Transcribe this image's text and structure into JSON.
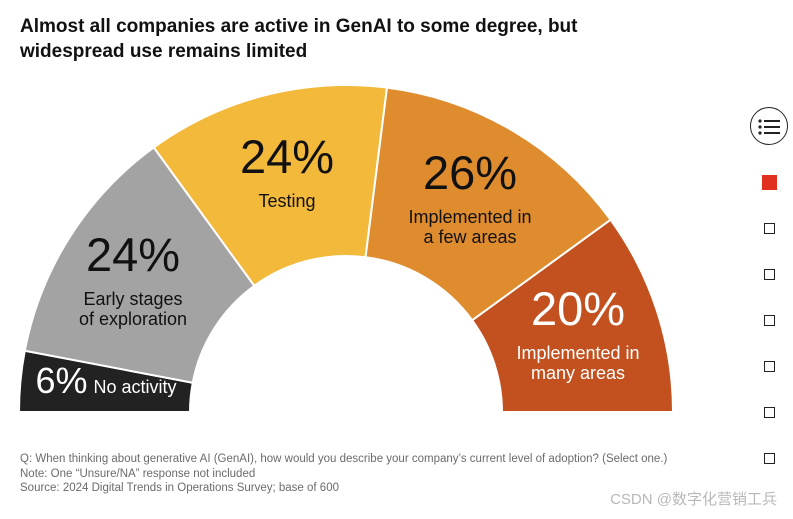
{
  "title": "Almost all companies are active in GenAI to some degree, but widespread use remains limited",
  "chart_data": {
    "type": "pie",
    "variant": "half-donut",
    "title": "Almost all companies are active in GenAI to some degree, but widespread use remains limited",
    "segments": [
      {
        "label": "No activity",
        "value": 6,
        "display": "6%",
        "color": "#222222",
        "text_color": "#ffffff",
        "label_lines": [
          "No activity"
        ]
      },
      {
        "label": "Early stages of exploration",
        "value": 24,
        "display": "24%",
        "color": "#a3a3a3",
        "text_color": "#111111",
        "label_lines": [
          "Early stages",
          "of exploration"
        ]
      },
      {
        "label": "Testing",
        "value": 24,
        "display": "24%",
        "color": "#f2b93b",
        "text_color": "#111111",
        "label_lines": [
          "Testing"
        ]
      },
      {
        "label": "Implemented in a few areas",
        "value": 26,
        "display": "26%",
        "color": "#df8c2f",
        "text_color": "#111111",
        "label_lines": [
          "Implemented in",
          "a few areas"
        ]
      },
      {
        "label": "Implemented in many areas",
        "value": 20,
        "display": "20%",
        "color": "#c2511f",
        "text_color": "#ffffff",
        "label_lines": [
          "Implemented in",
          "many areas"
        ]
      }
    ]
  },
  "notes": {
    "question": "Q: When thinking about generative AI (GenAI), how would you describe your company’s current level of adoption? (Select one.)",
    "note": "Note: One “Unsure/NA” response not included",
    "source": "Source: 2024 Digital Trends in Operations Survey; base of 600"
  },
  "nav": {
    "menu_icon": "list-icon",
    "active_color": "#e0301e",
    "dots": 7,
    "active_index": 0
  },
  "watermark": "CSDN @数字化营销工兵"
}
